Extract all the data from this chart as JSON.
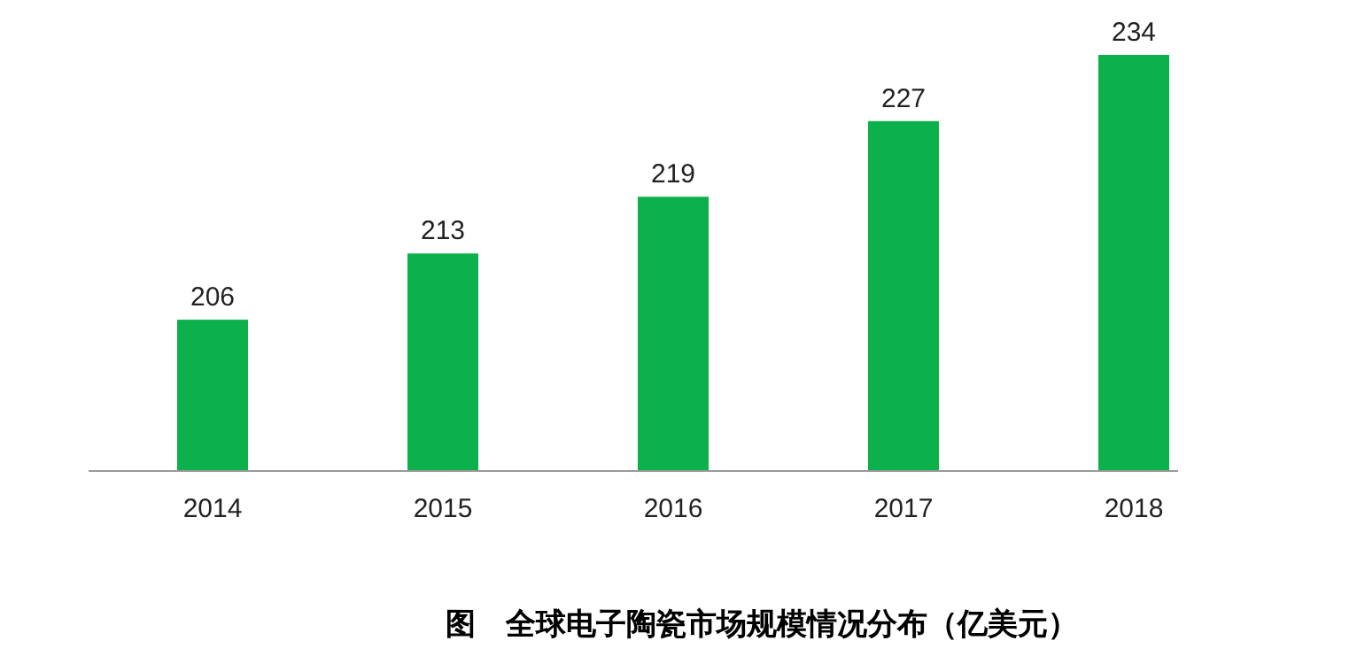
{
  "chart_data": {
    "type": "bar",
    "title": "图　全球电子陶瓷市场规模情况分布（亿美元）",
    "categories": [
      "2014",
      "2015",
      "2016",
      "2017",
      "2018"
    ],
    "values": [
      206,
      213,
      219,
      227,
      234
    ],
    "color": "#0db14b",
    "ylim": [
      190,
      234
    ],
    "data_labels": true
  }
}
